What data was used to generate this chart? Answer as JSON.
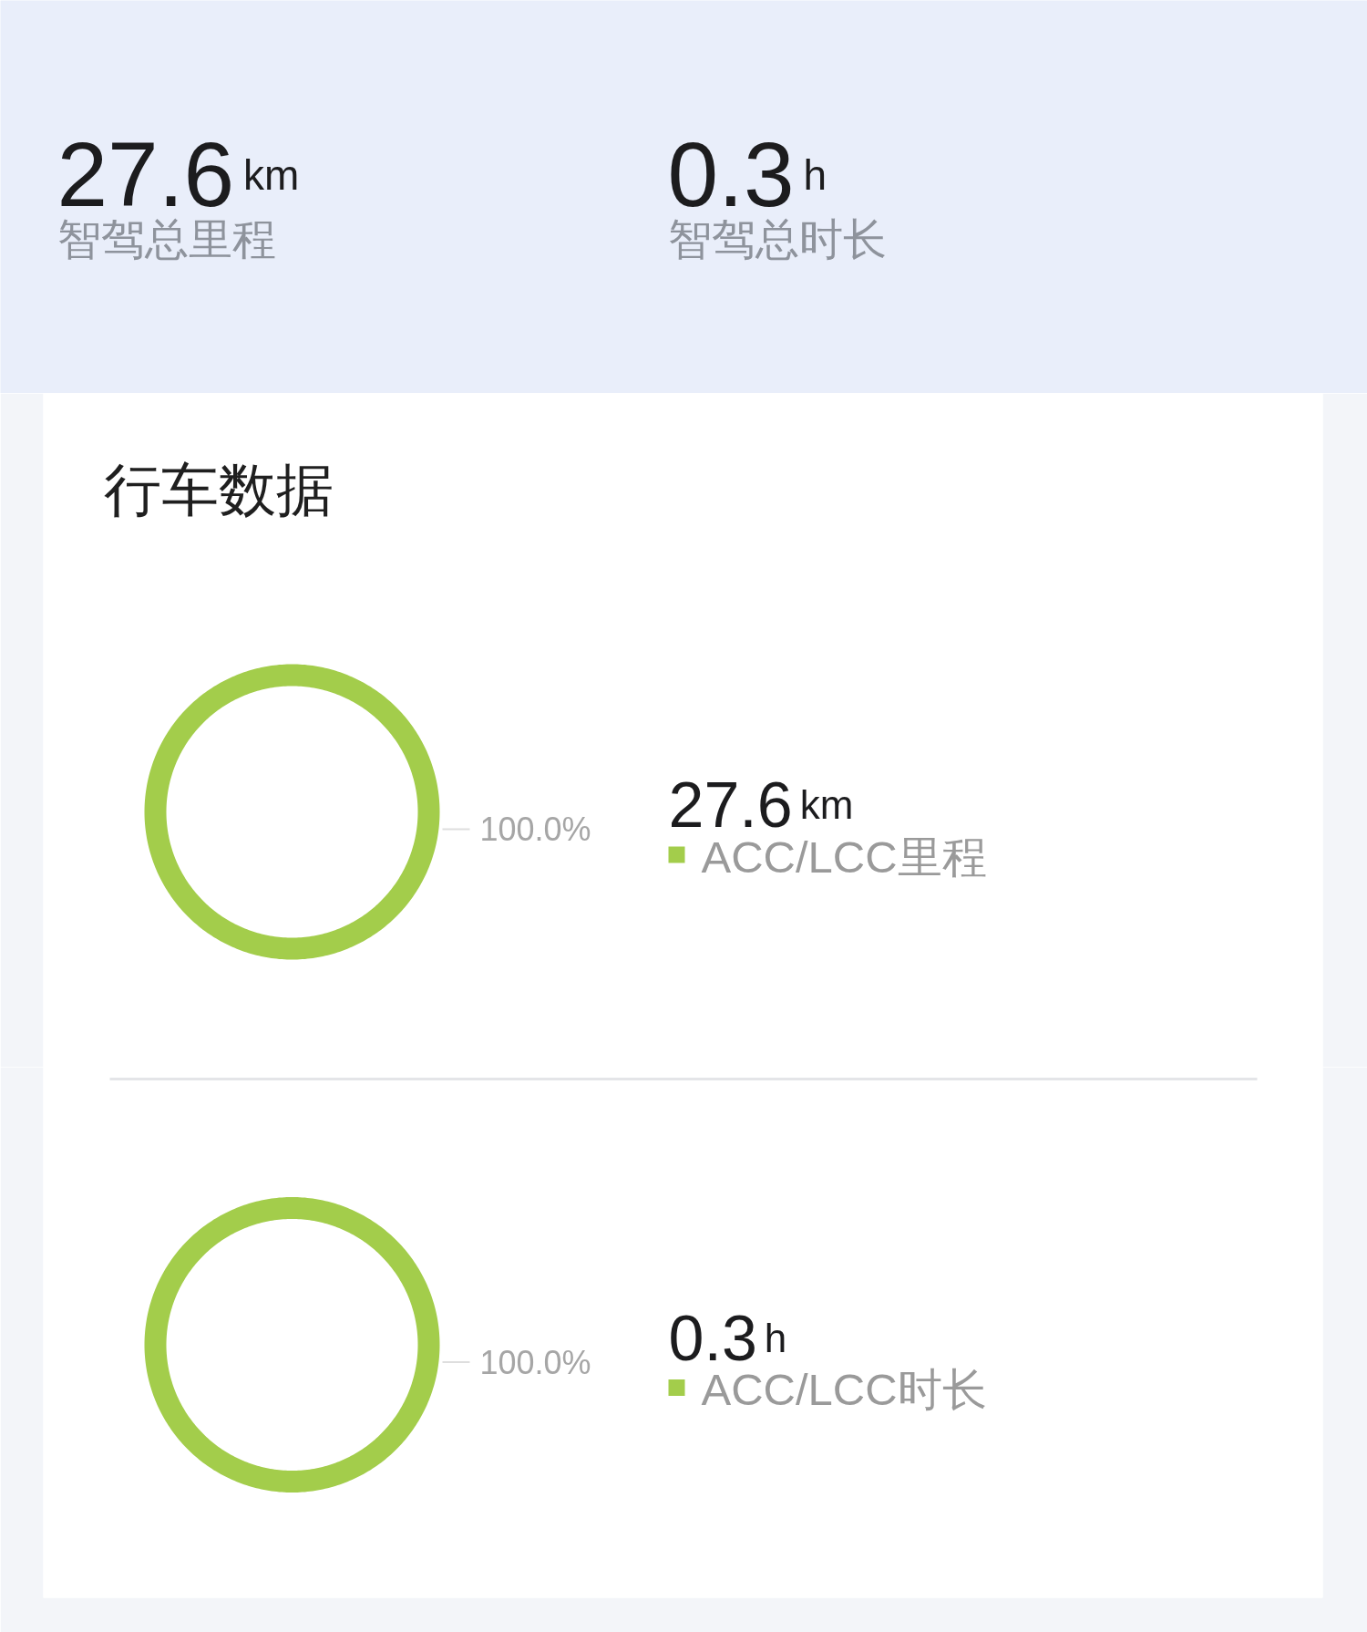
{
  "chart_data": [
    {
      "type": "other",
      "annotations": [
        "27.6",
        "km",
        "智驾总里程",
        "0.3",
        "h",
        "智驾总时长"
      ]
    },
    {
      "type": "donut",
      "title": "行车数据",
      "categories": [
        "ACC/LCC里程"
      ],
      "values": [
        100
      ],
      "colors": [
        "#a3cd4b"
      ],
      "value_labels": [
        "100.0%"
      ],
      "legend": "right",
      "annotations": [
        "27.6",
        "km"
      ]
    },
    {
      "type": "donut",
      "categories": [
        "ACC/LCC时长"
      ],
      "values": [
        100
      ],
      "colors": [
        "#a3cd4b"
      ],
      "value_labels": [
        "100.0%"
      ],
      "legend": "right",
      "annotations": [
        "0.3",
        "h"
      ]
    }
  ]
}
